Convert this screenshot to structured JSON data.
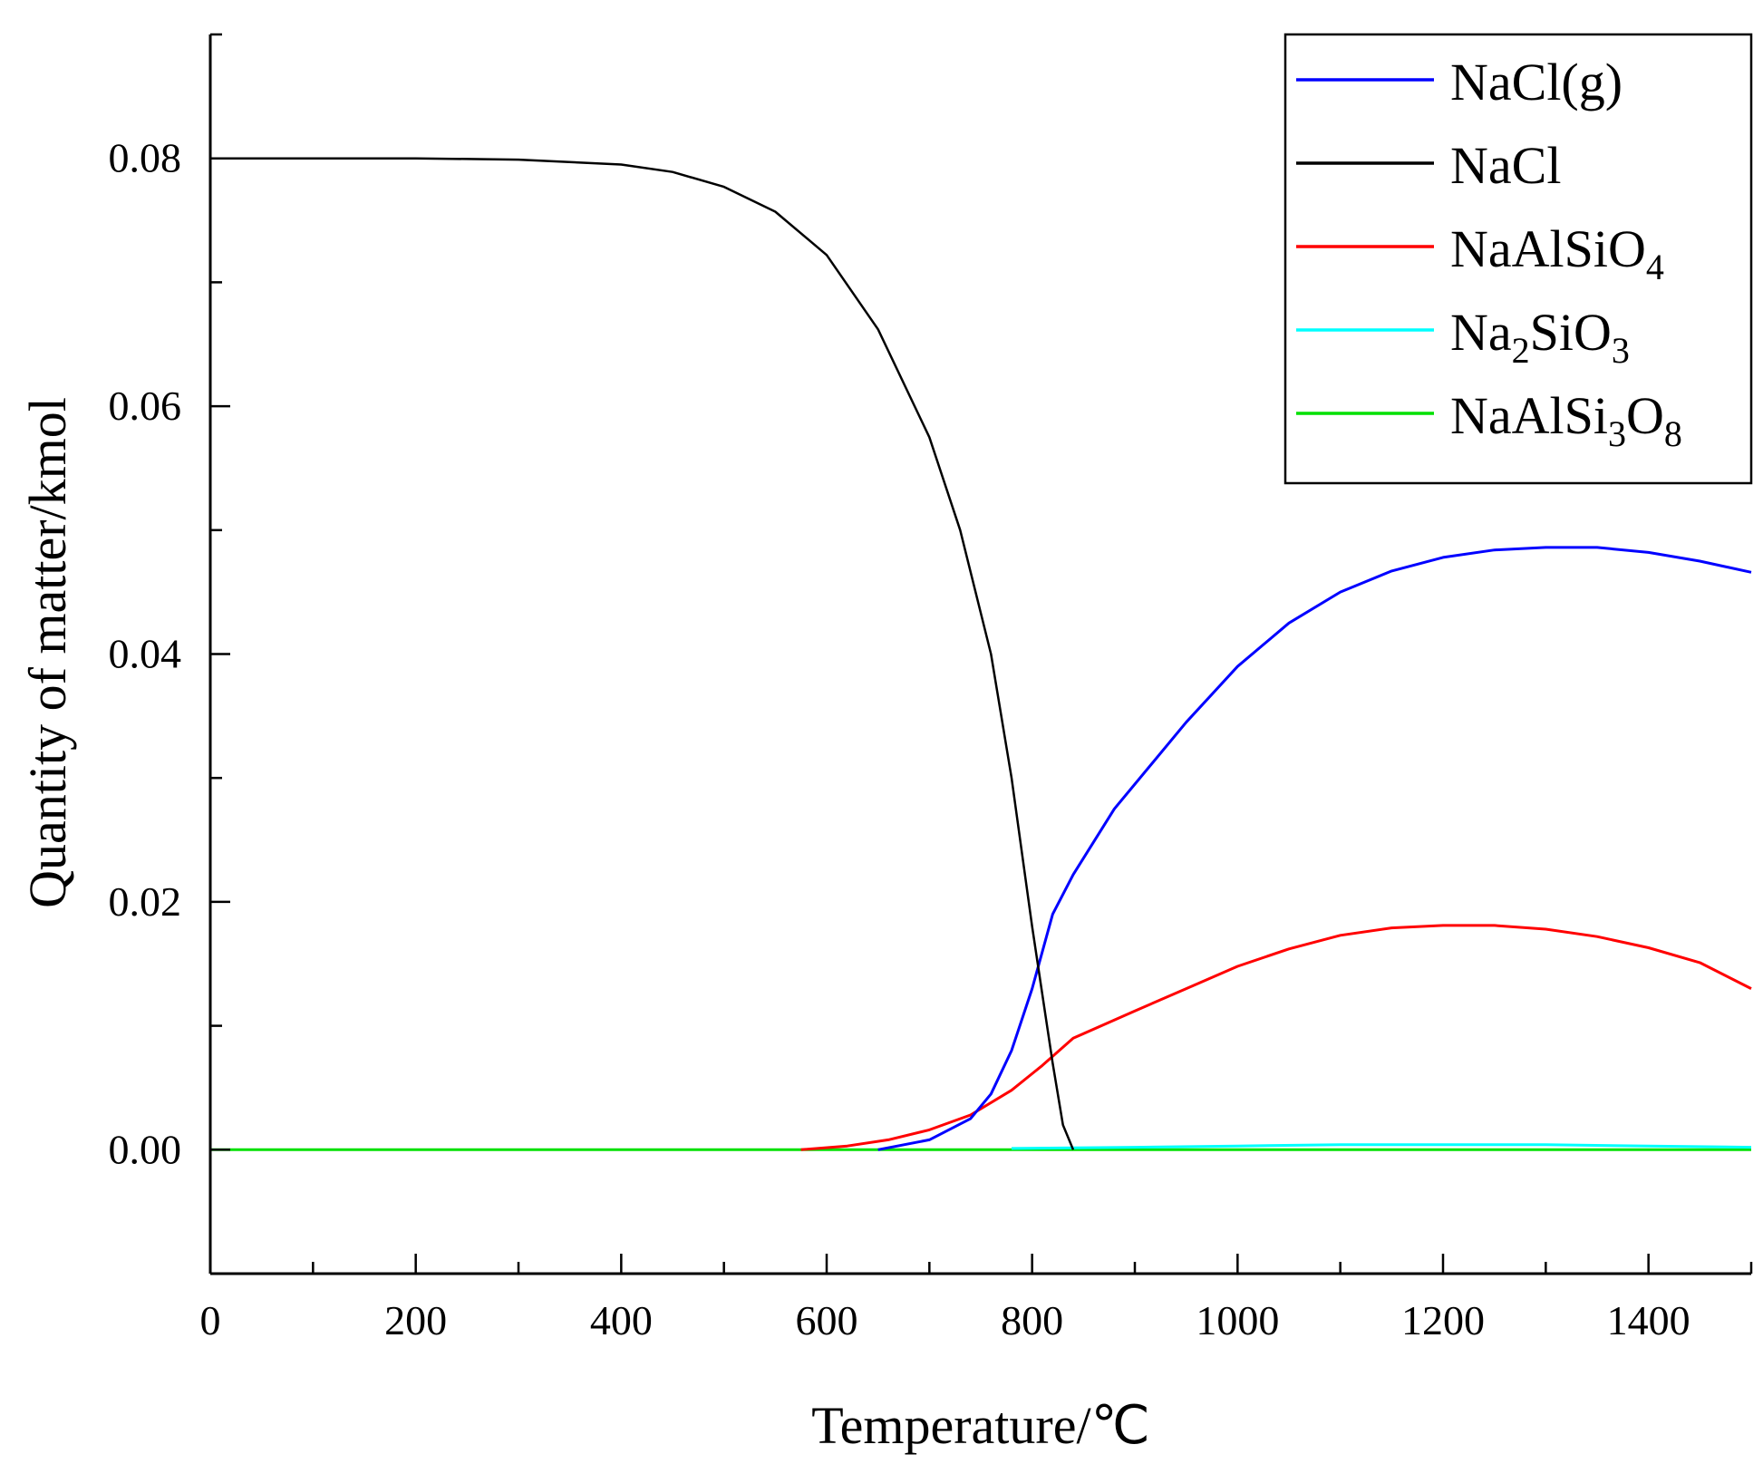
{
  "chart_data": {
    "type": "line",
    "xlabel": "Temperature/℃",
    "ylabel": "Quantity of matter/kmol",
    "xlim": [
      0,
      1500
    ],
    "ylim": [
      -0.01,
      0.09
    ],
    "xticks": [
      0,
      200,
      400,
      600,
      800,
      1000,
      1200,
      1400
    ],
    "xtick_labels": [
      "0",
      "200",
      "400",
      "600",
      "800",
      "1000",
      "1200",
      "1400"
    ],
    "yticks": [
      0.0,
      0.02,
      0.04,
      0.06,
      0.08
    ],
    "ytick_labels": [
      "0.00",
      "0.02",
      "0.04",
      "0.06",
      "0.08"
    ],
    "grid": false,
    "legend_position": "top-right",
    "series": [
      {
        "name": "NaCl(g)",
        "label": {
          "base": "NaCl(g)"
        },
        "color": "#0000ff",
        "x": [
          650,
          700,
          740,
          760,
          780,
          800,
          820,
          840,
          880,
          950,
          1000,
          1050,
          1100,
          1150,
          1200,
          1250,
          1300,
          1350,
          1400,
          1450,
          1500
        ],
        "y": [
          0.0,
          0.0008,
          0.0025,
          0.0045,
          0.008,
          0.013,
          0.019,
          0.0222,
          0.0275,
          0.0345,
          0.039,
          0.0425,
          0.045,
          0.0467,
          0.0478,
          0.0484,
          0.0486,
          0.0486,
          0.0482,
          0.0475,
          0.0466
        ]
      },
      {
        "name": "NaCl",
        "label": {
          "base": "NaCl"
        },
        "color": "#000000",
        "x": [
          0,
          200,
          300,
          400,
          450,
          500,
          550,
          600,
          650,
          700,
          730,
          760,
          780,
          800,
          820,
          830,
          840
        ],
        "y": [
          0.08,
          0.08,
          0.0799,
          0.0795,
          0.0789,
          0.0777,
          0.0757,
          0.0722,
          0.0662,
          0.0575,
          0.05,
          0.04,
          0.03,
          0.018,
          0.007,
          0.002,
          0.0
        ]
      },
      {
        "name": "NaAlSiO4",
        "label": {
          "base": "NaAlSiO",
          "sub1": "4"
        },
        "color": "#ff0000",
        "x": [
          575,
          620,
          660,
          700,
          740,
          780,
          810,
          840,
          900,
          950,
          1000,
          1050,
          1100,
          1150,
          1200,
          1250,
          1300,
          1350,
          1400,
          1450,
          1500
        ],
        "y": [
          0.0,
          0.0003,
          0.0008,
          0.0016,
          0.0028,
          0.0048,
          0.0068,
          0.009,
          0.0112,
          0.013,
          0.0148,
          0.0162,
          0.0173,
          0.0179,
          0.0181,
          0.0181,
          0.0178,
          0.0172,
          0.0163,
          0.0151,
          0.013
        ]
      },
      {
        "name": "Na2SiO3",
        "label": {
          "base": "Na",
          "sub1": "2",
          "mid": "SiO",
          "sub2": "3"
        },
        "color": "#00ffff",
        "x": [
          780,
          900,
          1000,
          1100,
          1200,
          1300,
          1400,
          1500
        ],
        "y": [
          0.0001,
          0.0002,
          0.0003,
          0.0004,
          0.0004,
          0.0004,
          0.0003,
          0.0002
        ]
      },
      {
        "name": "NaAlSi3O8",
        "label": {
          "base": "NaAlSi",
          "sub1": "3",
          "mid": "O",
          "sub2": "8"
        },
        "color": "#00e000",
        "x": [
          0,
          1500
        ],
        "y": [
          0.0,
          0.0
        ]
      }
    ]
  }
}
